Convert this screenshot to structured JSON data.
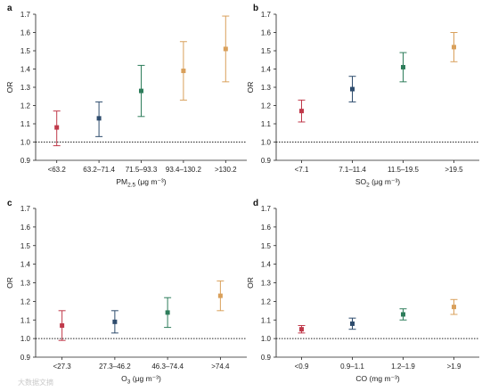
{
  "colors": [
    "#c0394a",
    "#2e4c6d",
    "#2e7d5b",
    "#d9a05b"
  ],
  "watermark": "大数据文摘",
  "chart_data": [
    {
      "type": "scatter",
      "panel_label": "a",
      "categories": [
        "<63.2",
        "63.2–71.4",
        "71.5–93.3",
        "93.4–130.2",
        ">130.2"
      ],
      "values": [
        1.08,
        1.13,
        1.28,
        1.39,
        1.51
      ],
      "ci_low": [
        0.98,
        1.03,
        1.14,
        1.23,
        1.33
      ],
      "ci_high": [
        1.17,
        1.22,
        1.42,
        1.55,
        1.69
      ],
      "color_idx": [
        0,
        1,
        2,
        3,
        3
      ],
      "ylabel": "OR",
      "xlabel_main": "PM",
      "xlabel_sub": "2.5",
      "xlabel_rest": " (μg m⁻³)",
      "ylim": [
        0.9,
        1.7
      ],
      "yticks": [
        "0.9",
        "1.0",
        "1.1",
        "1.2",
        "1.3",
        "1.4",
        "1.5",
        "1.6",
        "1.7"
      ],
      "reference_line": 1.0
    },
    {
      "type": "scatter",
      "panel_label": "b",
      "categories": [
        "<7.1",
        "7.1–11.4",
        "11.5–19.5",
        ">19.5"
      ],
      "values": [
        1.17,
        1.29,
        1.41,
        1.52
      ],
      "ci_low": [
        1.11,
        1.22,
        1.33,
        1.44
      ],
      "ci_high": [
        1.23,
        1.36,
        1.49,
        1.6
      ],
      "color_idx": [
        0,
        1,
        2,
        3
      ],
      "ylabel": "OR",
      "xlabel_main": "SO",
      "xlabel_sub": "2",
      "xlabel_rest": " (μg m⁻³)",
      "ylim": [
        0.9,
        1.7
      ],
      "yticks": [
        "0.9",
        "1.0",
        "1.1",
        "1.2",
        "1.3",
        "1.4",
        "1.5",
        "1.6",
        "1.7"
      ],
      "reference_line": 1.0
    },
    {
      "type": "scatter",
      "panel_label": "c",
      "categories": [
        "<27.3",
        "27.3–46.2",
        "46.3–74.4",
        ">74.4"
      ],
      "values": [
        1.07,
        1.09,
        1.14,
        1.23
      ],
      "ci_low": [
        0.99,
        1.03,
        1.06,
        1.15
      ],
      "ci_high": [
        1.15,
        1.15,
        1.22,
        1.31
      ],
      "color_idx": [
        0,
        1,
        2,
        3
      ],
      "ylabel": "OR",
      "xlabel_main": "O",
      "xlabel_sub": "3",
      "xlabel_rest": " (μg m⁻³)",
      "ylim": [
        0.9,
        1.7
      ],
      "yticks": [
        "0.9",
        "1.0",
        "1.1",
        "1.2",
        "1.3",
        "1.4",
        "1.5",
        "1.6",
        "1.7"
      ],
      "reference_line": 1.0
    },
    {
      "type": "scatter",
      "panel_label": "d",
      "categories": [
        "<0.9",
        "0.9–1.1",
        "1.2–1.9",
        ">1.9"
      ],
      "values": [
        1.05,
        1.08,
        1.13,
        1.17
      ],
      "ci_low": [
        1.03,
        1.05,
        1.1,
        1.13
      ],
      "ci_high": [
        1.07,
        1.11,
        1.16,
        1.21
      ],
      "color_idx": [
        0,
        1,
        2,
        3
      ],
      "ylabel": "OR",
      "xlabel_main": "CO (mg m⁻³)",
      "xlabel_sub": "",
      "xlabel_rest": "",
      "ylim": [
        0.9,
        1.7
      ],
      "yticks": [
        "0.9",
        "1.0",
        "1.1",
        "1.2",
        "1.3",
        "1.4",
        "1.5",
        "1.6",
        "1.7"
      ],
      "reference_line": 1.0
    }
  ]
}
